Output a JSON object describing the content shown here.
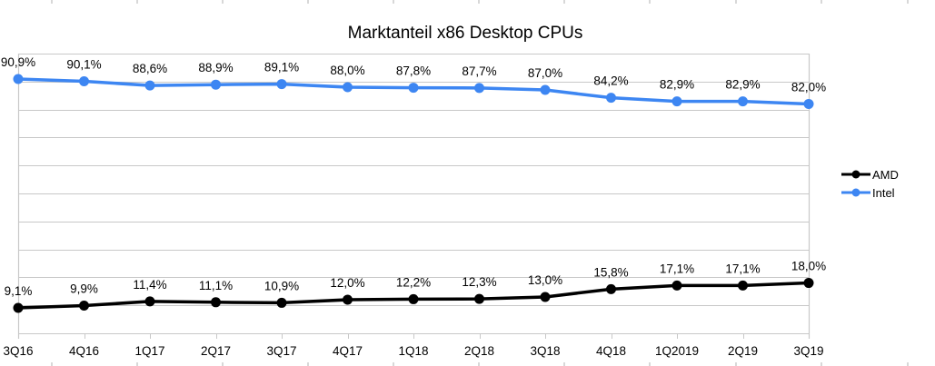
{
  "chart_data": {
    "type": "line",
    "title": "Marktanteil x86 Desktop CPUs",
    "xlabel": "",
    "ylabel": "",
    "categories": [
      "3Q16",
      "4Q16",
      "1Q17",
      "2Q17",
      "3Q17",
      "4Q17",
      "1Q18",
      "2Q18",
      "3Q18",
      "4Q18",
      "1Q2019",
      "2Q19",
      "3Q19"
    ],
    "series": [
      {
        "name": "AMD",
        "color": "#000000",
        "values": [
          9.1,
          9.9,
          11.4,
          11.1,
          10.9,
          12.0,
          12.2,
          12.3,
          13.0,
          15.8,
          17.1,
          17.1,
          18.0
        ],
        "labels": [
          "9,1%",
          "9,9%",
          "11,4%",
          "11,1%",
          "10,9%",
          "12,0%",
          "12,2%",
          "12,3%",
          "13,0%",
          "15,8%",
          "17,1%",
          "17,1%",
          "18,0%"
        ]
      },
      {
        "name": "Intel",
        "color": "#3d86f2",
        "values": [
          90.9,
          90.1,
          88.6,
          88.9,
          89.1,
          88.0,
          87.8,
          87.7,
          87.0,
          84.2,
          82.9,
          82.9,
          82.0
        ],
        "labels": [
          "90,9%",
          "90,1%",
          "88,6%",
          "88,9%",
          "89,1%",
          "88,0%",
          "87,8%",
          "87,7%",
          "87,0%",
          "84,2%",
          "82,9%",
          "82,9%",
          "82,0%"
        ]
      }
    ],
    "ylim": [
      0,
      100
    ],
    "y_gridline_step": 10,
    "y_tick_labels_visible": false,
    "grid": true,
    "legend": {
      "placement": "right",
      "entries": [
        "AMD",
        "Intel"
      ]
    },
    "data_label_format": "percent, comma decimal"
  }
}
